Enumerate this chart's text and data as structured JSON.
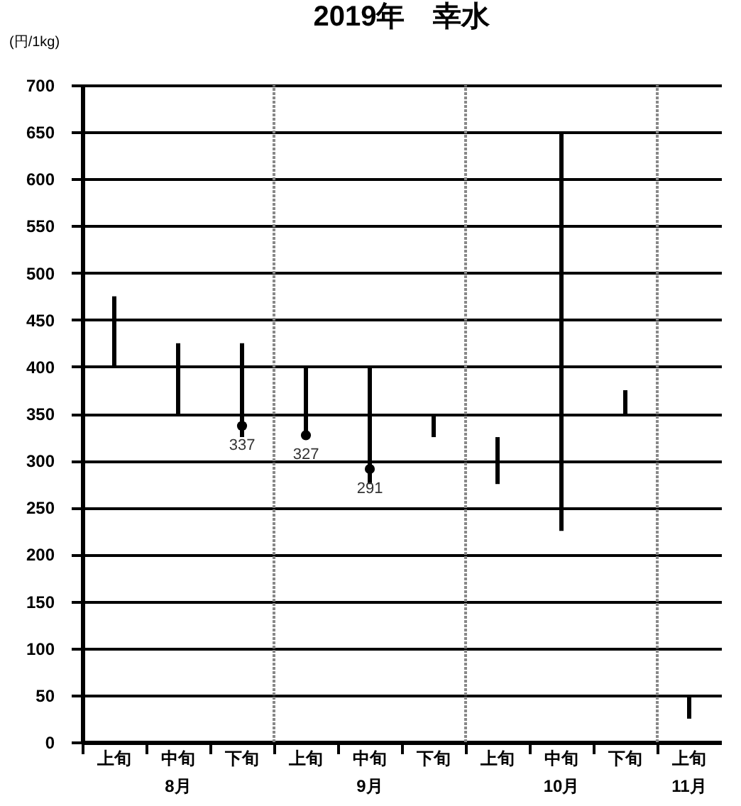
{
  "chart_data": {
    "type": "bar",
    "title": "2019年　幸水",
    "ylabel": "(円/1kg)",
    "categories": [
      "上旬",
      "中旬",
      "下旬",
      "上旬",
      "中旬",
      "下旬",
      "上旬",
      "中旬",
      "下旬",
      "上旬"
    ],
    "series": [
      {
        "type": "bar",
        "color": "#000000",
        "base": [
          400,
          350,
          325,
          325,
          275,
          325,
          275,
          225,
          350,
          25
        ],
        "values": [
          75,
          75,
          100,
          75,
          125,
          25,
          50,
          425,
          25,
          25
        ]
      },
      {
        "type": "scatter",
        "color": "#000000",
        "values": [
          null,
          null,
          337,
          327,
          291,
          null,
          null,
          null,
          null,
          null
        ],
        "value_labels": [
          null,
          null,
          "337",
          "327",
          "291",
          null,
          null,
          null,
          null,
          null
        ]
      }
    ],
    "ylim": [
      0,
      700
    ],
    "yticks": [
      0,
      50,
      100,
      150,
      200,
      250,
      300,
      350,
      400,
      450,
      500,
      550,
      600,
      650,
      700
    ],
    "grid": "y",
    "annotations": [
      "8月",
      "9月",
      "10月",
      "11月"
    ]
  }
}
